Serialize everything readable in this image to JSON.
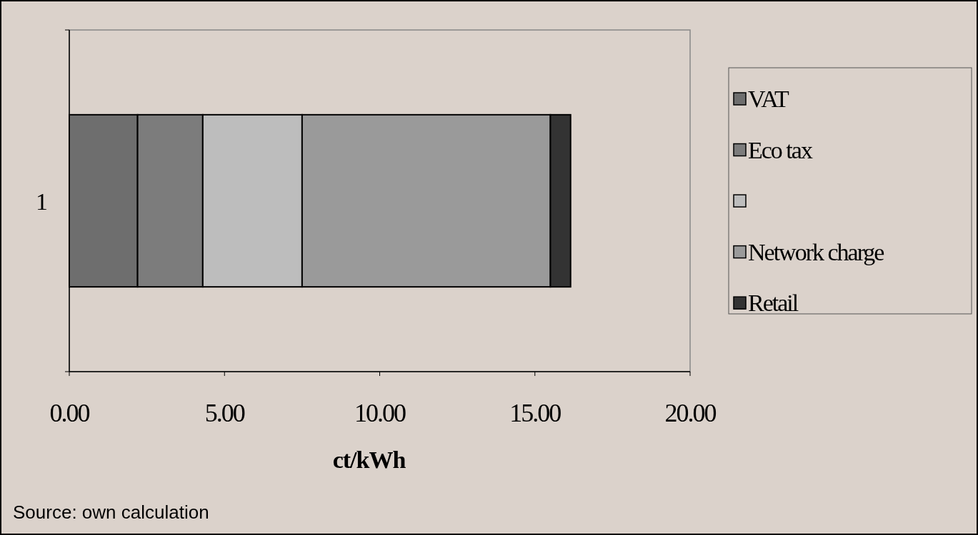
{
  "chart_data": {
    "type": "bar",
    "orientation": "horizontal",
    "stacked": true,
    "categories": [
      "1"
    ],
    "series": [
      {
        "name": "VAT",
        "color": "#6e6e6e",
        "values": [
          2.2
        ]
      },
      {
        "name": "Eco tax",
        "color": "#7c7c7c",
        "values": [
          2.1
        ]
      },
      {
        "color": "#bdbdbd",
        "values": [
          3.2
        ]
      },
      {
        "name": "Network charge",
        "color": "#9a9a9a",
        "values": [
          8.0
        ]
      },
      {
        "name": "Retail",
        "color": "#333333",
        "values": [
          0.65
        ]
      }
    ],
    "xlim": [
      0,
      20
    ],
    "xticks": [
      {
        "value": 0,
        "label": "0.00"
      },
      {
        "value": 5,
        "label": "5.00"
      },
      {
        "value": 10,
        "label": "10.00"
      },
      {
        "value": 15,
        "label": "15.00"
      },
      {
        "value": 20,
        "label": "20.00"
      }
    ],
    "xlabel": "ct/kWh",
    "grid": false,
    "legend": "right",
    "annotations": [
      "Source: own calculation"
    ]
  }
}
